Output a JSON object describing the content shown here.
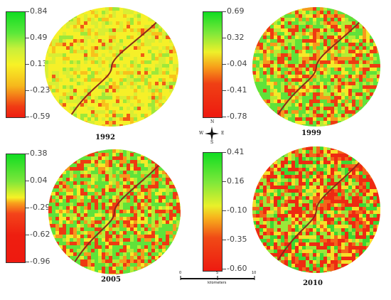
{
  "panels": [
    {
      "year": "1992",
      "ticks": [
        "0.84",
        "0.49",
        "0.13",
        "-0.23",
        "-0.59"
      ],
      "dominant": "yellow"
    },
    {
      "year": "1999",
      "ticks": [
        "0.69",
        "0.32",
        "-0.04",
        "-0.41",
        "-0.78"
      ],
      "dominant": "mixed"
    },
    {
      "year": "2005",
      "ticks": [
        "0.38",
        "0.04",
        "-0.29",
        "-0.62",
        "-0.96"
      ],
      "dominant": "mixed"
    },
    {
      "year": "2010",
      "ticks": [
        "0.41",
        "0.16",
        "-0.10",
        "-0.35",
        "-0.60"
      ],
      "dominant": "red"
    }
  ],
  "compass": {
    "n": "N",
    "s": "S",
    "e": "E",
    "w": "W"
  },
  "scale": {
    "unit": "kilometers",
    "zero": "0",
    "mid": "5",
    "max": "10"
  },
  "colors": {
    "high": "#22dd22",
    "mid": "#f5ee22",
    "low": "#ee2211",
    "river": "#8a2a1a"
  }
}
